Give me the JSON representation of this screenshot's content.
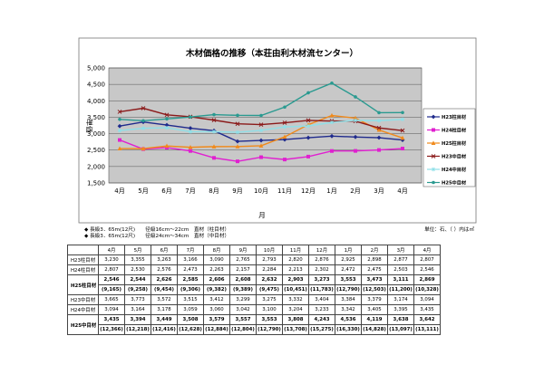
{
  "chart_data": {
    "type": "line",
    "title": "木材価格の推移（本荘由利木材流センター）",
    "ylabel": "単価",
    "xlabel": "月",
    "ylim": [
      1500,
      5000
    ],
    "y_ticks": [
      "1,500",
      "2,000",
      "2,500",
      "3,000",
      "3,500",
      "4,000",
      "4,500",
      "5,000"
    ],
    "categories": [
      "4月",
      "5月",
      "6月",
      "7月",
      "8月",
      "9月",
      "10月",
      "11月",
      "12月",
      "1月",
      "2月",
      "3月",
      "4月"
    ],
    "grid": true,
    "legend": "right",
    "series": [
      {
        "name": "H23柱目材",
        "color": "#1f2a8c",
        "marker": "diamond",
        "values": [
          3230,
          3355,
          3263,
          3166,
          3090,
          2765,
          2793,
          2820,
          2876,
          2925,
          2898,
          2877,
          2807
        ]
      },
      {
        "name": "H24柱目材",
        "color": "#e020d0",
        "marker": "square",
        "values": [
          2807,
          2530,
          2576,
          2473,
          2263,
          2157,
          2284,
          2213,
          2302,
          2472,
          2475,
          2503,
          2546
        ]
      },
      {
        "name": "H25柱目材",
        "color": "#f08a1c",
        "marker": "triangle",
        "values": [
          2546,
          2544,
          2626,
          2585,
          2606,
          2608,
          2632,
          2903,
          3273,
          3553,
          3473,
          3111,
          2869
        ]
      },
      {
        "name": "H23中目材",
        "color": "#8b1a1a",
        "marker": "x",
        "values": [
          3665,
          3773,
          3572,
          3515,
          3412,
          3299,
          3275,
          3332,
          3404,
          3384,
          3379,
          3174,
          3094
        ]
      },
      {
        "name": "H24中目材",
        "color": "#8fe0e8",
        "marker": "star",
        "values": [
          3094,
          3164,
          3178,
          3059,
          3060,
          3042,
          3100,
          3204,
          3233,
          3342,
          3405,
          3395,
          3435
        ]
      },
      {
        "name": "H25中目材",
        "color": "#2a9a90",
        "marker": "dot",
        "values": [
          3435,
          3394,
          3449,
          3508,
          3579,
          3557,
          3553,
          3808,
          4243,
          4536,
          4119,
          3638,
          3642
        ]
      }
    ]
  },
  "notes": {
    "line1": "◆ 長級3．65m(12尺)　　径級16cm～22cm　直材（柱目材）",
    "line2": "◆ 長級3．65m(12尺)　　径級24cm～34cm　直材（中目材）",
    "unit": "単位：石、（ ）内は㎥"
  },
  "table": {
    "headers": [
      "4月",
      "5月",
      "6月",
      "7月",
      "8月",
      "9月",
      "10月",
      "11月",
      "12月",
      "1月",
      "2月",
      "3月",
      "4月"
    ],
    "rows": [
      {
        "label": "H23柱目材",
        "values": [
          "3,230",
          "3,355",
          "3,263",
          "3,166",
          "3,090",
          "2,765",
          "2,793",
          "2,820",
          "2,876",
          "2,925",
          "2,898",
          "2,877",
          "2,807"
        ]
      },
      {
        "label": "H24柱目材",
        "values": [
          "2,807",
          "2,530",
          "2,576",
          "2,473",
          "2,263",
          "2,157",
          "2,284",
          "2,213",
          "2,302",
          "2,472",
          "2,475",
          "2,503",
          "2,546"
        ]
      },
      {
        "label": "H25柱目材",
        "bold": true,
        "values": [
          "2,546",
          "2,544",
          "2,626",
          "2,585",
          "2,606",
          "2,608",
          "2,632",
          "2,903",
          "3,273",
          "3,553",
          "3,473",
          "3,111",
          "2,869"
        ],
        "sub": [
          "(9,165)",
          "(9,258)",
          "(9,454)",
          "(9,306)",
          "(9,382)",
          "(9,389)",
          "(9,475)",
          "(10,451)",
          "(11,783)",
          "(12,790)",
          "(12,503)",
          "(11,200)",
          "(10,328)"
        ]
      },
      {
        "label": "H23中目材",
        "values": [
          "3,665",
          "3,773",
          "3,572",
          "3,515",
          "3,412",
          "3,299",
          "3,275",
          "3,332",
          "3,404",
          "3,384",
          "3,379",
          "3,174",
          "3,094"
        ]
      },
      {
        "label": "H24中目材",
        "values": [
          "3,094",
          "3,164",
          "3,178",
          "3,059",
          "3,060",
          "3,042",
          "3,100",
          "3,204",
          "3,233",
          "3,342",
          "3,405",
          "3,395",
          "3,435"
        ]
      },
      {
        "label": "H25中目材",
        "bold": true,
        "values": [
          "3,435",
          "3,394",
          "3,449",
          "3,508",
          "3,579",
          "3,557",
          "3,553",
          "3,808",
          "4,243",
          "4,536",
          "4,119",
          "3,638",
          "3,642"
        ],
        "sub": [
          "(12,366)",
          "(12,218)",
          "(12,416)",
          "(12,628)",
          "(12,884)",
          "(12,804)",
          "(12,790)",
          "(13,708)",
          "(15,275)",
          "(16,330)",
          "(14,828)",
          "(13,097)",
          "(13,111)"
        ]
      }
    ]
  }
}
